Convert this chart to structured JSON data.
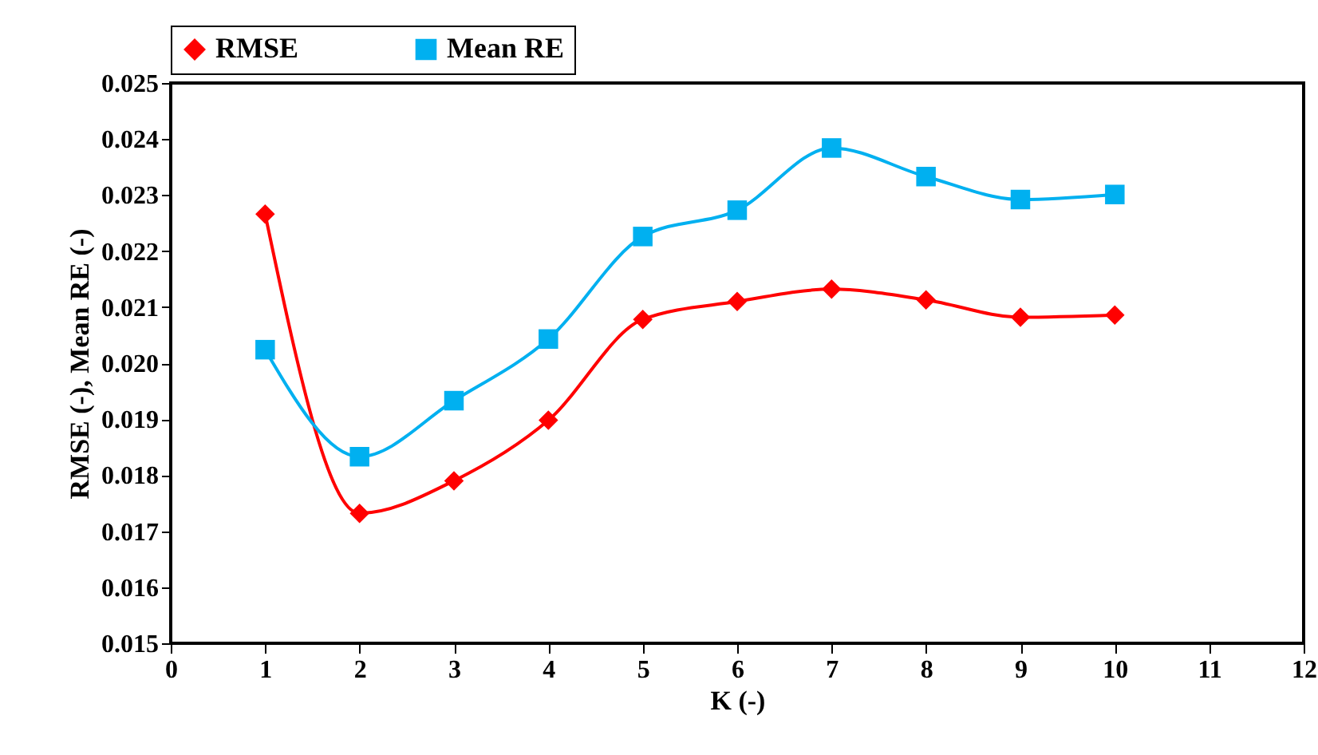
{
  "chart_data": {
    "type": "line",
    "xlabel": "K (-)",
    "ylabel": "RMSE (-), Mean RE (-)",
    "x": [
      1,
      2,
      3,
      4,
      5,
      6,
      7,
      8,
      9,
      10
    ],
    "series": [
      {
        "name": "RMSE",
        "color": "#ff0000",
        "marker": "diamond",
        "values": [
          0.02266,
          0.01732,
          0.0179,
          0.01898,
          0.02078,
          0.0211,
          0.02132,
          0.02113,
          0.02082,
          0.02086
        ]
      },
      {
        "name": "Mean RE",
        "color": "#00b0f0",
        "marker": "square",
        "values": [
          0.02024,
          0.01833,
          0.01933,
          0.02043,
          0.02226,
          0.02273,
          0.02384,
          0.02333,
          0.02292,
          0.02301
        ]
      }
    ],
    "xlim": [
      0,
      12
    ],
    "xticks": [
      0,
      1,
      2,
      3,
      4,
      5,
      6,
      7,
      8,
      9,
      10,
      11,
      12
    ],
    "ylim": [
      0.015,
      0.025
    ],
    "yticks": [
      0.015,
      0.016,
      0.017,
      0.018,
      0.019,
      {
        "value": 0.02,
        "label": "0.020"
      },
      0.021,
      0.022,
      0.023,
      0.024,
      0.025
    ],
    "legend": "top",
    "grid": false,
    "line_style": "solid"
  }
}
